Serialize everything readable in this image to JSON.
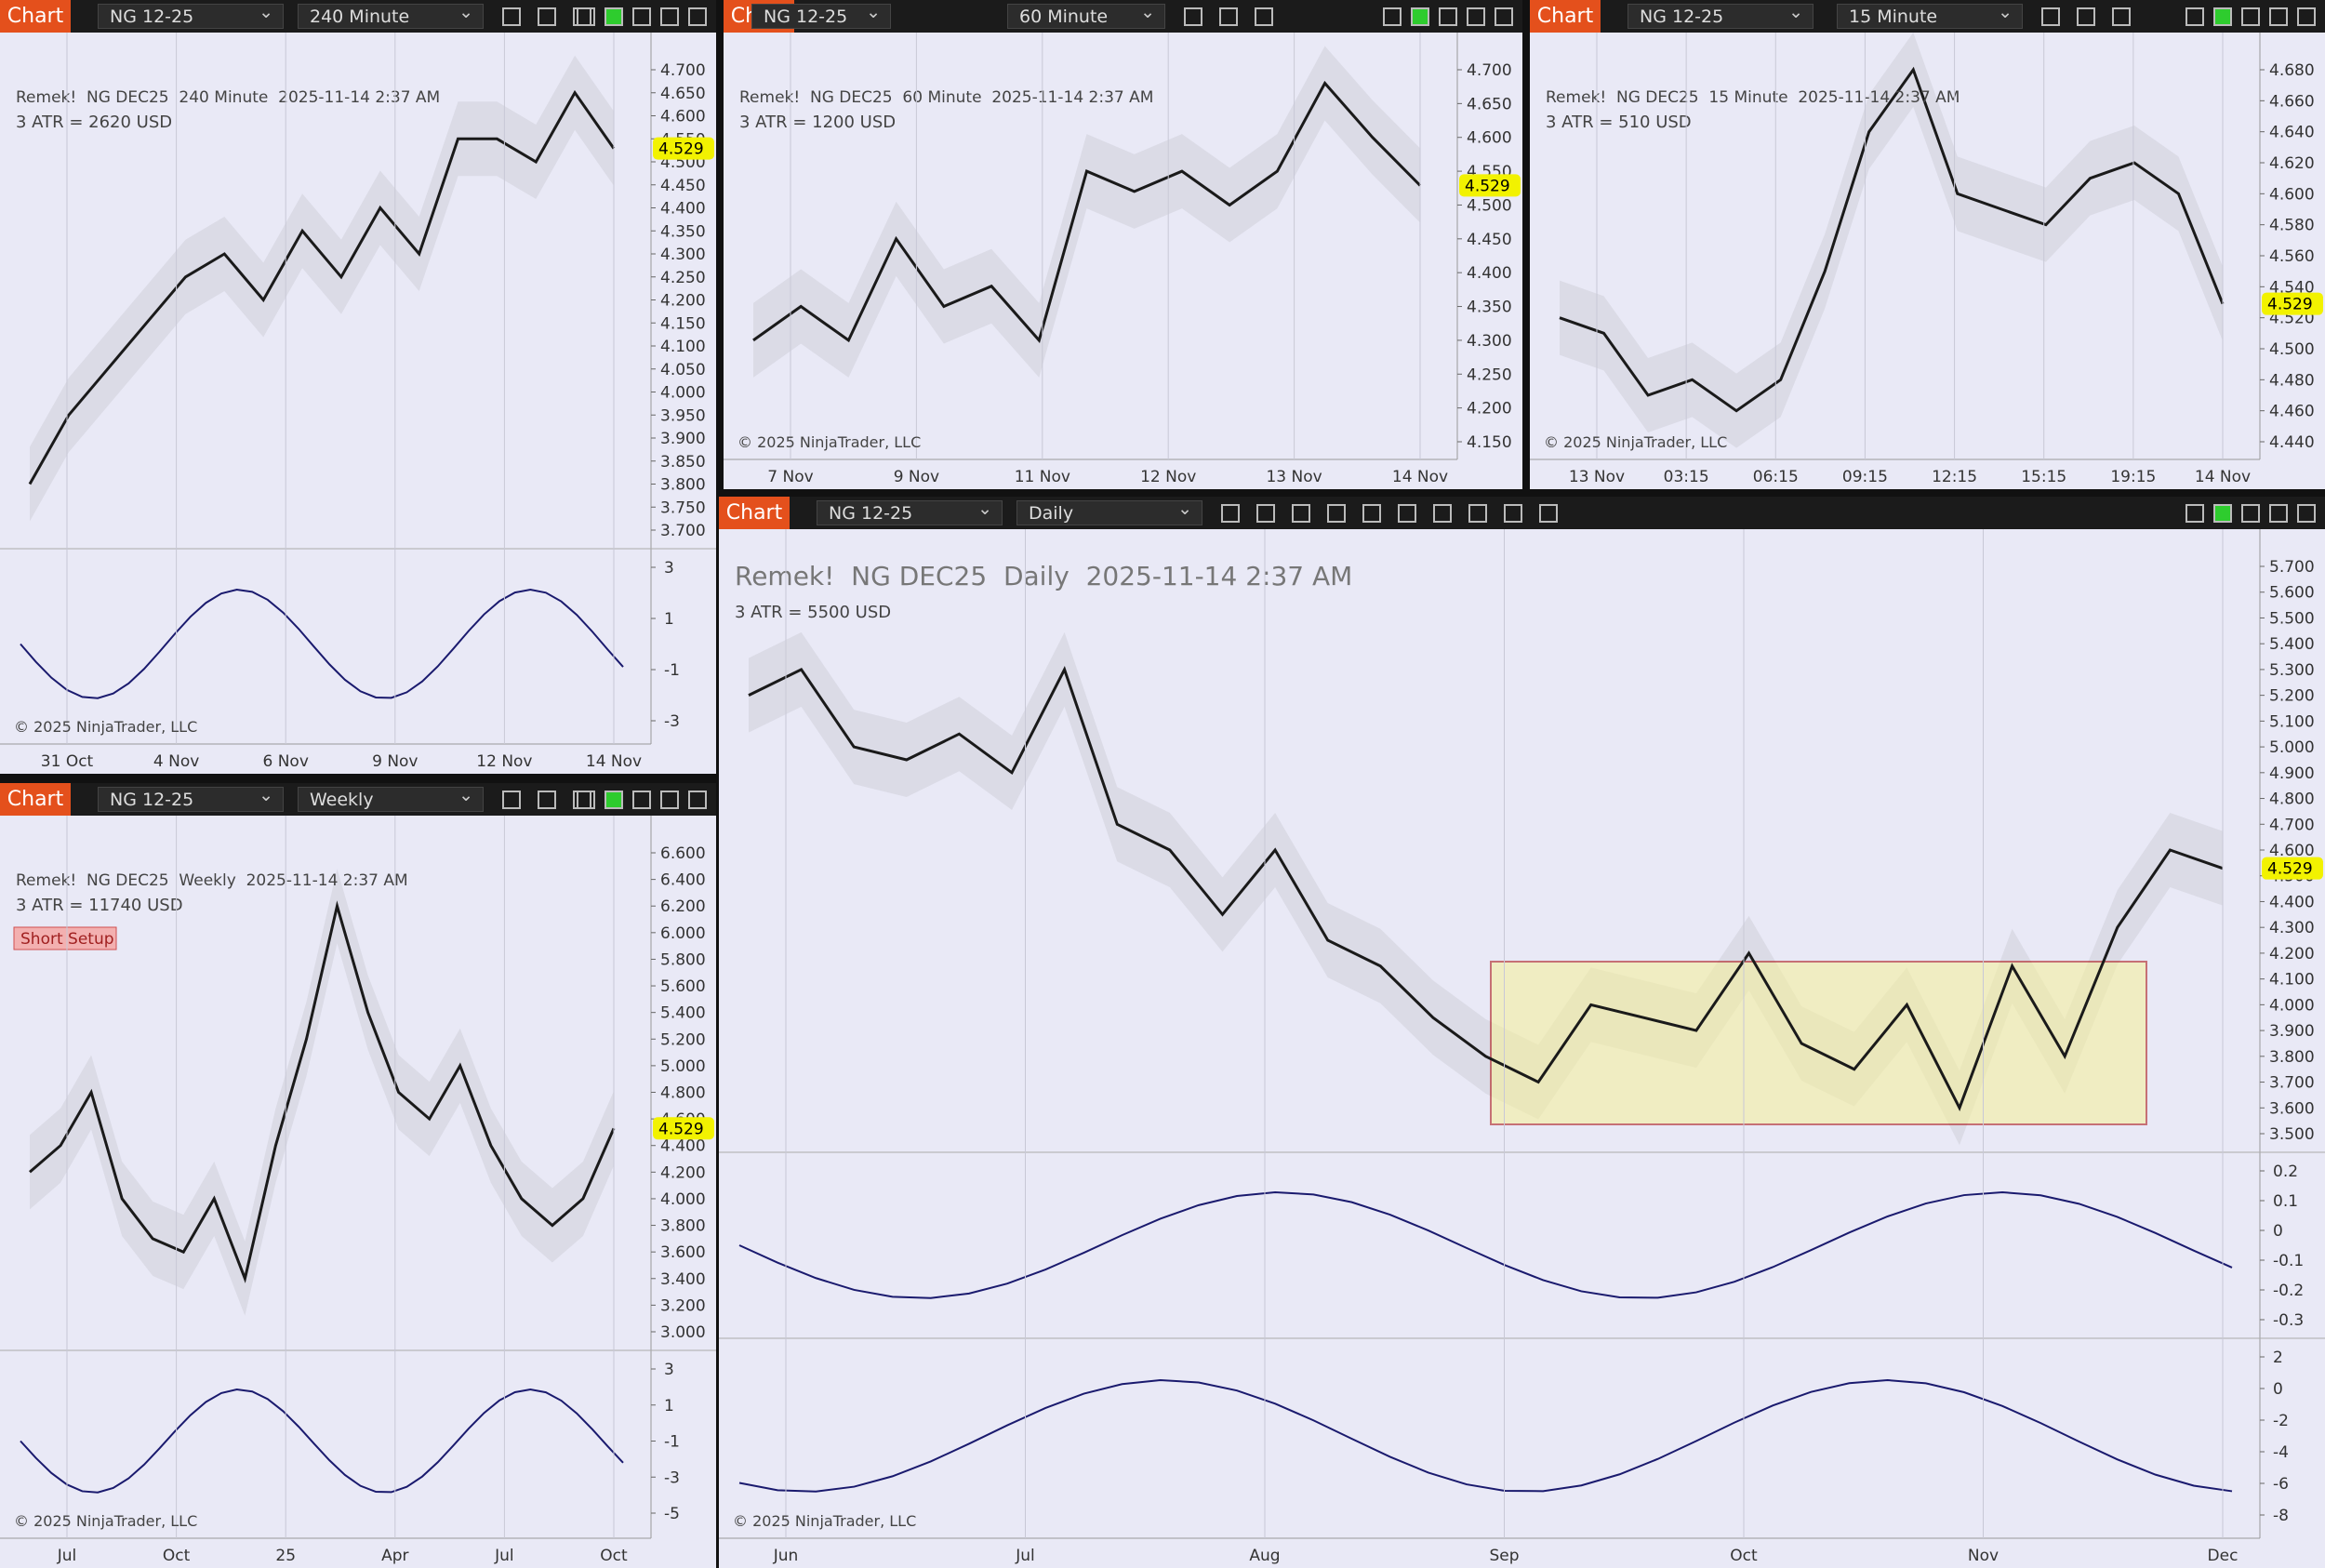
{
  "panels": [
    {
      "tab": "Chart",
      "instrument": "NG 12-25",
      "interval": "240 Minute",
      "info_line": "Remek!  NG DEC25  240 Minute  2025-11-14 2:37 AM",
      "atr": "3 ATR = 2620 USD",
      "price_ticks": [
        {
          "value": 4.7,
          "label": "4.700"
        },
        {
          "value": 4.65,
          "label": "4.650"
        },
        {
          "value": 4.6,
          "label": "4.600"
        },
        {
          "value": 4.55,
          "label": "4.550"
        },
        {
          "value": 4.5,
          "label": "4.500"
        },
        {
          "value": 4.45,
          "label": "4.450"
        },
        {
          "value": 4.4,
          "label": "4.400"
        },
        {
          "value": 4.35,
          "label": "4.350"
        },
        {
          "value": 4.3,
          "label": "4.300"
        },
        {
          "value": 4.25,
          "label": "4.250"
        },
        {
          "value": 4.2,
          "label": "4.200"
        },
        {
          "value": 4.15,
          "label": "4.150"
        },
        {
          "value": 4.1,
          "label": "4.100"
        },
        {
          "value": 4.05,
          "label": "4.050"
        },
        {
          "value": 4.0,
          "label": "4.000"
        },
        {
          "value": 3.95,
          "label": "3.950"
        },
        {
          "value": 3.9,
          "label": "3.900"
        },
        {
          "value": 3.85,
          "label": "3.850"
        },
        {
          "value": 3.8,
          "label": "3.800"
        },
        {
          "value": 3.75,
          "label": "3.750"
        },
        {
          "value": 3.7,
          "label": "3.700"
        }
      ],
      "last_price": {
        "value": 4.529,
        "label": "4.529"
      },
      "closes": [
        3.8,
        3.95,
        4.05,
        4.15,
        4.25,
        4.3,
        4.2,
        4.35,
        4.25,
        4.4,
        4.3,
        4.55,
        4.55,
        4.5,
        4.65,
        4.529
      ],
      "sub_ticks": [
        3,
        1,
        -1,
        -3
      ],
      "x_labels": [
        "31 Oct",
        "4 Nov",
        "6 Nov",
        "9 Nov",
        "12 Nov",
        "14 Nov"
      ],
      "copyright": "© 2025 NinjaTrader, LLC"
    },
    {
      "tab": "Chart",
      "instrument": "NG 12-25",
      "interval": "60 Minute",
      "info_line": "Remek!  NG DEC25  60 Minute  2025-11-14 2:37 AM",
      "atr": "3 ATR = 1200 USD",
      "price_ticks": [
        {
          "value": 4.7,
          "label": "4.700"
        },
        {
          "value": 4.65,
          "label": "4.650"
        },
        {
          "value": 4.6,
          "label": "4.600"
        },
        {
          "value": 4.55,
          "label": "4.550"
        },
        {
          "value": 4.5,
          "label": "4.500"
        },
        {
          "value": 4.45,
          "label": "4.450"
        },
        {
          "value": 4.4,
          "label": "4.400"
        },
        {
          "value": 4.35,
          "label": "4.350"
        },
        {
          "value": 4.3,
          "label": "4.300"
        },
        {
          "value": 4.25,
          "label": "4.250"
        },
        {
          "value": 4.2,
          "label": "4.200"
        },
        {
          "value": 4.15,
          "label": "4.150"
        }
      ],
      "last_price": {
        "value": 4.529,
        "label": "4.529"
      },
      "closes": [
        4.3,
        4.35,
        4.3,
        4.45,
        4.35,
        4.38,
        4.3,
        4.55,
        4.52,
        4.55,
        4.5,
        4.55,
        4.68,
        4.6,
        4.529
      ],
      "x_labels": [
        "7 Nov",
        "9 Nov",
        "11 Nov",
        "12 Nov",
        "13 Nov",
        "14 Nov"
      ],
      "copyright": "© 2025 NinjaTrader, LLC"
    },
    {
      "tab": "Chart",
      "instrument": "NG 12-25",
      "interval": "15 Minute",
      "info_line": "Remek!  NG DEC25  15 Minute  2025-11-14 2:37 AM",
      "atr": "3 ATR = 510 USD",
      "price_ticks": [
        {
          "value": 4.68,
          "label": "4.680"
        },
        {
          "value": 4.66,
          "label": "4.660"
        },
        {
          "value": 4.64,
          "label": "4.640"
        },
        {
          "value": 4.62,
          "label": "4.620"
        },
        {
          "value": 4.6,
          "label": "4.600"
        },
        {
          "value": 4.58,
          "label": "4.580"
        },
        {
          "value": 4.56,
          "label": "4.560"
        },
        {
          "value": 4.54,
          "label": "4.540"
        },
        {
          "value": 4.52,
          "label": "4.520"
        },
        {
          "value": 4.5,
          "label": "4.500"
        },
        {
          "value": 4.48,
          "label": "4.480"
        },
        {
          "value": 4.46,
          "label": "4.460"
        },
        {
          "value": 4.44,
          "label": "4.440"
        }
      ],
      "last_price": {
        "value": 4.529,
        "label": "4.529"
      },
      "closes": [
        4.52,
        4.51,
        4.47,
        4.48,
        4.46,
        4.48,
        4.55,
        4.64,
        4.68,
        4.6,
        4.59,
        4.58,
        4.61,
        4.62,
        4.6,
        4.529
      ],
      "x_labels": [
        "13 Nov",
        "03:15",
        "06:15",
        "09:15",
        "12:15",
        "15:15",
        "19:15",
        "14 Nov"
      ],
      "copyright": "© 2025 NinjaTrader, LLC"
    },
    {
      "tab": "Chart",
      "instrument": "NG 12-25",
      "interval": "Weekly",
      "info_line": "Remek!  NG DEC25  Weekly  2025-11-14 2:37 AM",
      "atr": "3 ATR = 11740 USD",
      "badge": "Short Setup",
      "price_ticks": [
        {
          "value": 6.6,
          "label": "6.600"
        },
        {
          "value": 6.4,
          "label": "6.400"
        },
        {
          "value": 6.2,
          "label": "6.200"
        },
        {
          "value": 6.0,
          "label": "6.000"
        },
        {
          "value": 5.8,
          "label": "5.800"
        },
        {
          "value": 5.6,
          "label": "5.600"
        },
        {
          "value": 5.4,
          "label": "5.400"
        },
        {
          "value": 5.2,
          "label": "5.200"
        },
        {
          "value": 5.0,
          "label": "5.000"
        },
        {
          "value": 4.8,
          "label": "4.800"
        },
        {
          "value": 4.6,
          "label": "4.600"
        },
        {
          "value": 4.4,
          "label": "4.400"
        },
        {
          "value": 4.2,
          "label": "4.200"
        },
        {
          "value": 4.0,
          "label": "4.000"
        },
        {
          "value": 3.8,
          "label": "3.800"
        },
        {
          "value": 3.6,
          "label": "3.600"
        },
        {
          "value": 3.4,
          "label": "3.400"
        },
        {
          "value": 3.2,
          "label": "3.200"
        },
        {
          "value": 3.0,
          "label": "3.000"
        }
      ],
      "last_price": {
        "value": 4.529,
        "label": "4.529"
      },
      "closes": [
        4.2,
        4.4,
        4.8,
        4.0,
        3.7,
        3.6,
        4.0,
        3.4,
        4.4,
        5.2,
        6.2,
        5.4,
        4.8,
        4.6,
        5.0,
        4.4,
        4.0,
        3.8,
        4.0,
        4.529
      ],
      "sub_ticks": [
        3,
        1,
        -1,
        -3,
        -5
      ],
      "x_labels": [
        "Jul",
        "Oct",
        "25",
        "Apr",
        "Jul",
        "Oct"
      ],
      "copyright": "© 2025 NinjaTrader, LLC"
    },
    {
      "tab": "Chart",
      "instrument": "NG 12-25",
      "interval": "Daily",
      "info_line": "Remek!  NG DEC25  Daily  2025-11-14 2:37 AM",
      "atr": "3 ATR = 5500 USD",
      "price_ticks": [
        {
          "value": 5.7,
          "label": "5.700"
        },
        {
          "value": 5.6,
          "label": "5.600"
        },
        {
          "value": 5.5,
          "label": "5.500"
        },
        {
          "value": 5.4,
          "label": "5.400"
        },
        {
          "value": 5.3,
          "label": "5.300"
        },
        {
          "value": 5.2,
          "label": "5.200"
        },
        {
          "value": 5.1,
          "label": "5.100"
        },
        {
          "value": 5.0,
          "label": "5.000"
        },
        {
          "value": 4.9,
          "label": "4.900"
        },
        {
          "value": 4.8,
          "label": "4.800"
        },
        {
          "value": 4.7,
          "label": "4.700"
        },
        {
          "value": 4.6,
          "label": "4.600"
        },
        {
          "value": 4.5,
          "label": "4.500"
        },
        {
          "value": 4.4,
          "label": "4.400"
        },
        {
          "value": 4.3,
          "label": "4.300"
        },
        {
          "value": 4.2,
          "label": "4.200"
        },
        {
          "value": 4.1,
          "label": "4.100"
        },
        {
          "value": 4.0,
          "label": "4.000"
        },
        {
          "value": 3.9,
          "label": "3.900"
        },
        {
          "value": 3.8,
          "label": "3.800"
        },
        {
          "value": 3.7,
          "label": "3.700"
        },
        {
          "value": 3.6,
          "label": "3.600"
        },
        {
          "value": 3.5,
          "label": "3.500"
        }
      ],
      "last_price": {
        "value": 4.529,
        "label": "4.529"
      },
      "closes": [
        5.2,
        5.3,
        5.0,
        4.95,
        5.05,
        4.9,
        5.3,
        4.7,
        4.6,
        4.35,
        4.6,
        4.25,
        4.15,
        3.95,
        3.8,
        3.7,
        4.0,
        3.95,
        3.9,
        4.2,
        3.85,
        3.75,
        4.0,
        3.6,
        4.15,
        3.8,
        4.3,
        4.6,
        4.529
      ],
      "sub_ticks": [
        0.2,
        0.1,
        0,
        -0.1,
        -0.2,
        -0.3
      ],
      "sub2_ticks": [
        2,
        0,
        -2,
        -4,
        -6,
        -8
      ],
      "x_labels": [
        "Jun",
        "Jul",
        "Aug",
        "Sep",
        "Oct",
        "Nov",
        "Dec"
      ],
      "copyright": "© 2025 NinjaTrader, LLC"
    }
  ]
}
